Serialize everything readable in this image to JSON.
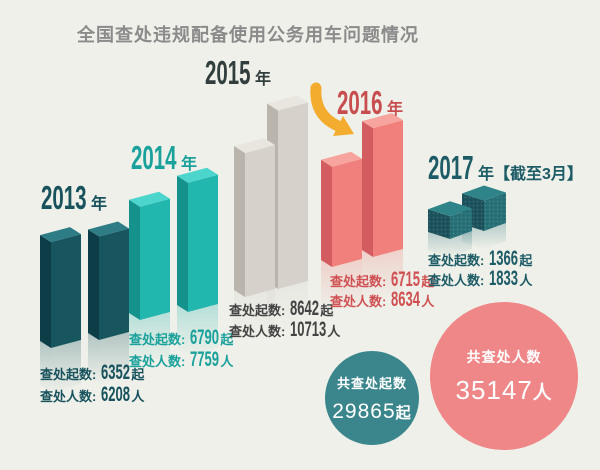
{
  "title": {
    "text": "全国查处违规配备使用公务用车问题情况",
    "color": "#8b8b8b"
  },
  "background_color": "#eef0e9",
  "chart_data": {
    "type": "bar",
    "title": "全国查处违规配备使用公务用车问题情况",
    "series": [
      {
        "name": "查处起数",
        "unit": "起"
      },
      {
        "name": "查处人数",
        "unit": "人"
      }
    ],
    "groups": [
      {
        "year": "2013",
        "suffix": "年",
        "cases_label": "查处起数:",
        "cases": 6352,
        "cases_unit": "起",
        "people_label": "查处人数:",
        "people": 6208,
        "people_unit": "人",
        "theme": {
          "year": "#17525d",
          "text": "#17525d",
          "barTop": "#2d7c86",
          "barLeft": "#0d3d47",
          "barRight": "#17555f"
        }
      },
      {
        "year": "2014",
        "suffix": "年",
        "cases_label": "查处起数:",
        "cases": 6790,
        "cases_unit": "起",
        "people_label": "查处人数:",
        "people": 7759,
        "people_unit": "人",
        "theme": {
          "year": "#1aa19b",
          "text": "#1aa19b",
          "barTop": "#4cd5cc",
          "barLeft": "#14928b",
          "barRight": "#21b6ae"
        }
      },
      {
        "year": "2015",
        "suffix": "年",
        "cases_label": "查处起数:",
        "cases": 8642,
        "cases_unit": "起",
        "people_label": "查处人数:",
        "people": 10713,
        "people_unit": "人",
        "theme": {
          "year": "#323e3d",
          "text": "#434343",
          "barTop": "#e9e6e0",
          "barLeft": "#b9b4ac",
          "barRight": "#d6d2cb"
        }
      },
      {
        "year": "2016",
        "suffix": "年",
        "cases_label": "查处起数:",
        "cases": 6715,
        "cases_unit": "起",
        "people_label": "查处人数:",
        "people": 8634,
        "people_unit": "人",
        "theme": {
          "year": "#c84d4f",
          "text": "#cf5153",
          "barTop": "#f6a49d",
          "barLeft": "#d25c60",
          "barRight": "#f1807c"
        }
      },
      {
        "year": "2017",
        "suffix": "年【截至3月】",
        "cases_label": "查处起数:",
        "cases": 1366,
        "cases_unit": "起",
        "people_label": "查处人数:",
        "people": 1833,
        "people_unit": "人",
        "theme": {
          "year": "#1d5b66",
          "text": "#1d5b66",
          "barTop": "#2e8488",
          "barLeft": "#1a515b",
          "barRight": "#266f76"
        }
      }
    ],
    "totals": [
      {
        "label": "共查处起数",
        "value": "29865",
        "unit": "起",
        "color": "#3a868c"
      },
      {
        "label": "共查处人数",
        "value": "35147",
        "unit": "人",
        "color": "#ef8687"
      }
    ],
    "annotations": {
      "arrow_color": "#f4ac2f"
    }
  }
}
